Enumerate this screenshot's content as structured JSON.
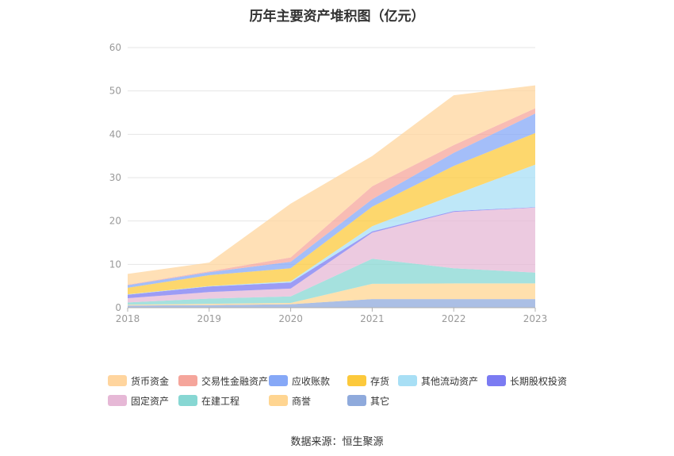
{
  "title": "历年主要资产堆积图（亿元）",
  "source": "数据来源：恒生聚源",
  "chart_data": {
    "type": "area",
    "stacked": true,
    "x": [
      "2018",
      "2019",
      "2020",
      "2021",
      "2022",
      "2023"
    ],
    "ylim": [
      0,
      60
    ],
    "yticks": [
      0,
      10,
      20,
      30,
      40,
      50,
      60
    ],
    "grid": true,
    "legend_position": "bottom",
    "series": [
      {
        "name": "其它",
        "color": "#8faadc",
        "values": [
          0.5,
          0.6,
          0.8,
          2.0,
          2.0,
          2.0
        ]
      },
      {
        "name": "商誉",
        "color": "#ffd591",
        "values": [
          0.2,
          0.3,
          0.3,
          3.5,
          3.6,
          3.6
        ]
      },
      {
        "name": "在建工程",
        "color": "#87d7d3",
        "values": [
          0.5,
          1.2,
          1.5,
          5.8,
          3.5,
          2.5
        ]
      },
      {
        "name": "固定资产",
        "color": "#e6b8d6",
        "values": [
          1.0,
          1.5,
          1.8,
          6.0,
          13.0,
          15.0
        ]
      },
      {
        "name": "长期股权投资",
        "color": "#7b7bf2",
        "values": [
          0.8,
          1.3,
          1.4,
          0.3,
          0.2,
          0.1
        ]
      },
      {
        "name": "其他流动资产",
        "color": "#a8dff5",
        "values": [
          0.1,
          0.1,
          0.3,
          1.2,
          3.7,
          9.8
        ]
      },
      {
        "name": "存货",
        "color": "#fcc93c",
        "values": [
          1.5,
          2.5,
          3.0,
          4.5,
          6.7,
          7.3
        ]
      },
      {
        "name": "应收账款",
        "color": "#86a8f7",
        "values": [
          0.6,
          0.7,
          1.5,
          1.7,
          3.0,
          4.5
        ]
      },
      {
        "name": "交易性金融资产",
        "color": "#f5a59b",
        "values": [
          0.1,
          0.2,
          1.0,
          3.0,
          1.8,
          1.2
        ]
      },
      {
        "name": "货币资金",
        "color": "#ffd59e",
        "values": [
          2.5,
          2.0,
          12.4,
          7.0,
          11.5,
          5.3
        ]
      }
    ],
    "legend_order": [
      "货币资金",
      "交易性金融资产",
      "应收账款",
      "存货",
      "其他流动资产",
      "长期股权投资",
      "固定资产",
      "在建工程",
      "商誉",
      "其它"
    ]
  }
}
